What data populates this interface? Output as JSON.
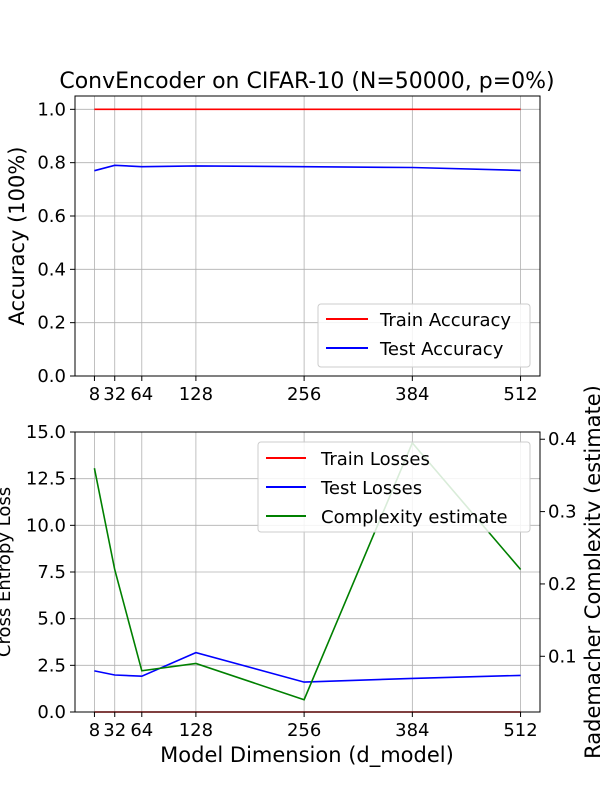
{
  "chart_data": [
    {
      "type": "line",
      "title": "ConvEncoder on CIFAR-10 (N=50000, p=0%)",
      "xlabel": "",
      "ylabel": "Accuracy (100%)",
      "x": [
        8,
        32,
        64,
        128,
        256,
        384,
        512
      ],
      "xticks": [
        "8",
        "32",
        "64",
        "128",
        "256",
        "384",
        "512"
      ],
      "xlim": [
        -15,
        535
      ],
      "ylim": [
        0,
        1.05
      ],
      "yticks": [
        "0.0",
        "0.2",
        "0.4",
        "0.6",
        "0.8",
        "1.0"
      ],
      "grid": true,
      "legend": "lower-right",
      "series": [
        {
          "name": "Train Accuracy",
          "color": "#ff0000",
          "values": [
            1.0,
            1.0,
            1.0,
            1.0,
            1.0,
            1.0,
            1.0
          ]
        },
        {
          "name": "Test Accuracy",
          "color": "#0000ff",
          "values": [
            0.77,
            0.79,
            0.785,
            0.788,
            0.785,
            0.782,
            0.771
          ]
        }
      ]
    },
    {
      "type": "line",
      "title": "",
      "xlabel": "Model Dimension (d_model)",
      "ylabel": "Cross Entropy Loss",
      "y2label": "Rademacher Complexity (estimate)",
      "x": [
        8,
        32,
        64,
        128,
        256,
        384,
        512
      ],
      "xticks": [
        "8",
        "32",
        "64",
        "128",
        "256",
        "384",
        "512"
      ],
      "xlim": [
        -15,
        535
      ],
      "ylim": [
        0,
        15
      ],
      "yticks": [
        "0.0",
        "2.5",
        "5.0",
        "7.5",
        "10.0",
        "12.5",
        "15.0"
      ],
      "y2lim": [
        0.023,
        0.41
      ],
      "y2ticks": [
        "0.1",
        "0.2",
        "0.3",
        "0.4"
      ],
      "grid": true,
      "legend": "top-right",
      "series": [
        {
          "name": "Train Losses",
          "color": "#ff0000",
          "axis": "left",
          "values": [
            0.0,
            0.0,
            0.0,
            0.0,
            0.0,
            0.0,
            0.0
          ]
        },
        {
          "name": "Test Losses",
          "color": "#0000ff",
          "axis": "left",
          "values": [
            2.2,
            1.98,
            1.92,
            3.18,
            1.6,
            1.8,
            1.96
          ]
        },
        {
          "name": "Complexity estimate",
          "color": "#008000",
          "axis": "right",
          "values": [
            0.36,
            0.22,
            0.08,
            0.09,
            0.04,
            0.395,
            0.22
          ]
        }
      ]
    }
  ]
}
